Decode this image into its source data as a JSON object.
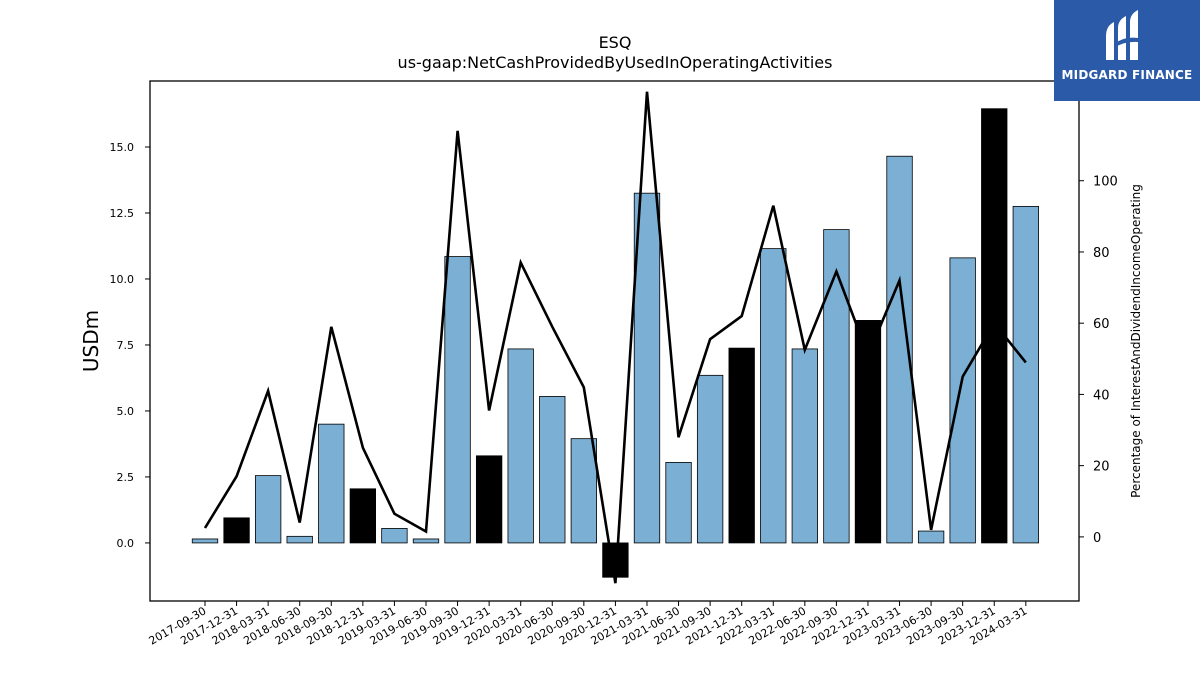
{
  "logo": {
    "brand_text": "MIDGARD FINANCE",
    "background": "#2b5aa8"
  },
  "colors": {
    "bar_positive": "#7bafd4",
    "bar_highlight": "#000000",
    "line": "#000000"
  },
  "chart_data": {
    "type": "bar",
    "title": "ESQ",
    "subtitle": "us-gaap:NetCashProvidedByUsedInOperatingActivities",
    "ylabel": "USDm",
    "y2label": "Percentage of InterestAndDividendIncomeOperating",
    "ylim": [
      -2.2,
      17.5
    ],
    "y2lim": [
      -18,
      128
    ],
    "yticks": [
      "0.0",
      "2.5",
      "5.0",
      "7.5",
      "10.0",
      "12.5",
      "15.0"
    ],
    "y2ticks": [
      "0",
      "20",
      "40",
      "60",
      "80",
      "100"
    ],
    "grid": false,
    "categories": [
      "2017-09-30",
      "2017-12-31",
      "2018-03-31",
      "2018-06-30",
      "2018-09-30",
      "2018-12-31",
      "2019-03-31",
      "2019-06-30",
      "2019-09-30",
      "2019-12-31",
      "2020-03-31",
      "2020-06-30",
      "2020-09-30",
      "2020-12-31",
      "2021-03-31",
      "2021-06-30",
      "2021-09-30",
      "2021-12-31",
      "2022-03-31",
      "2022-06-30",
      "2022-09-30",
      "2022-12-31",
      "2023-03-31",
      "2023-06-30",
      "2023-09-30",
      "2023-12-31",
      "2024-03-31"
    ],
    "series": [
      {
        "values": [
          0.15,
          0.95,
          2.55,
          0.25,
          4.5,
          2.05,
          0.55,
          0.15,
          10.85,
          3.3,
          7.35,
          5.55,
          3.95,
          -1.3,
          13.25,
          3.05,
          6.35,
          7.38,
          11.15,
          7.35,
          11.87,
          8.43,
          14.65,
          0.45,
          10.8,
          16.45,
          12.75
        ],
        "highlight": [
          false,
          true,
          false,
          false,
          false,
          true,
          false,
          false,
          false,
          true,
          false,
          false,
          false,
          true,
          false,
          false,
          false,
          true,
          false,
          false,
          false,
          true,
          false,
          false,
          false,
          true,
          false
        ]
      },
      {
        "axis": "right",
        "type": "line",
        "values": [
          2.5,
          17,
          41,
          4,
          59,
          25,
          6.5,
          1.5,
          114,
          35.5,
          77,
          59,
          42,
          -13,
          125,
          28,
          55.5,
          62,
          93,
          52.5,
          74.5,
          51,
          72,
          2,
          45,
          60,
          49
        ]
      }
    ]
  }
}
